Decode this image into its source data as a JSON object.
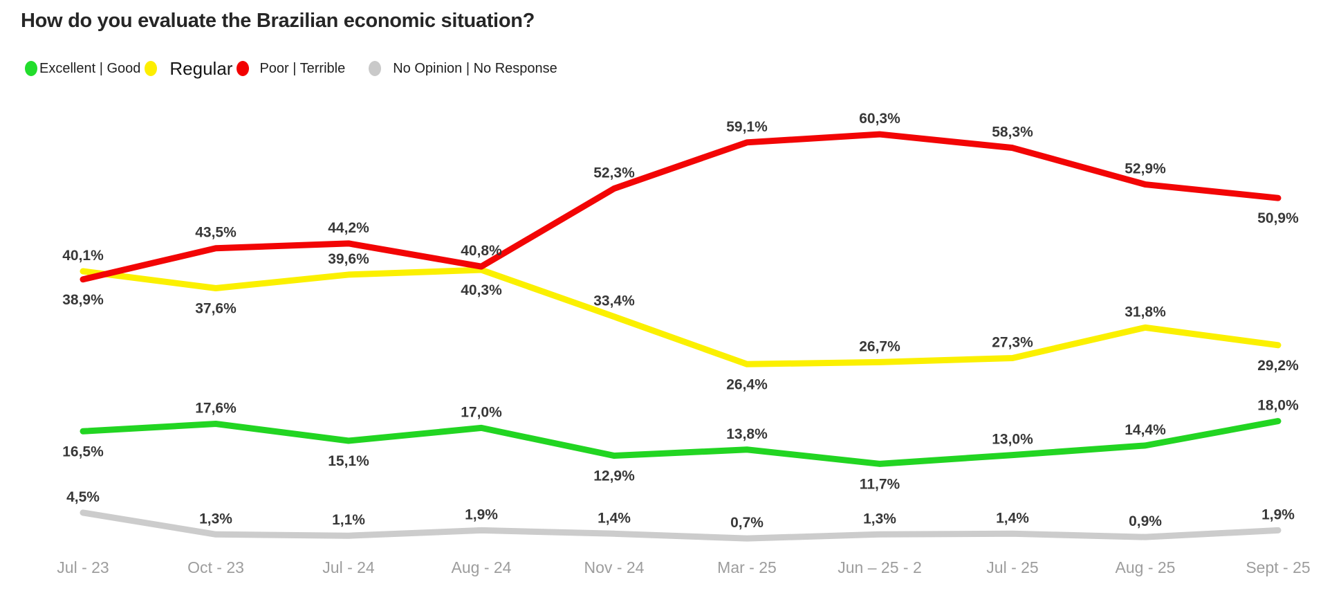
{
  "title": "How do you evaluate the Brazilian economic situation?",
  "legend": [
    {
      "label": "Excellent | Good",
      "color": "#22dd2c",
      "emphasis": false
    },
    {
      "label": "Regular",
      "color": "#fdee00",
      "emphasis": true
    },
    {
      "label": "Poor | Terrible",
      "color": "#f20000",
      "emphasis": false
    },
    {
      "label": "No Opinion | No Response",
      "color": "#c9c9c9",
      "emphasis": false
    }
  ],
  "chart_data": {
    "type": "line",
    "title": "How do you evaluate the Brazilian economic situation?",
    "categories": [
      "Jul - 23",
      "Oct - 23",
      "Jul - 24",
      "Aug - 24",
      "Nov - 24",
      "Mar - 25",
      "Jun – 25 - 2",
      "Jul - 25",
      "Aug - 25",
      "Sept - 25"
    ],
    "series": [
      {
        "name": "No Opinion | No Response",
        "color": "#cccccc",
        "z": 1,
        "values": [
          4.5,
          1.3,
          1.1,
          1.9,
          1.4,
          0.7,
          1.3,
          1.4,
          0.9,
          1.9
        ],
        "label_positions": [
          "above",
          "above",
          "above",
          "above",
          "above",
          "above",
          "above",
          "above",
          "above",
          "above"
        ]
      },
      {
        "name": "Excellent | Good",
        "color": "#22d522",
        "z": 2,
        "values": [
          16.5,
          17.6,
          15.1,
          17.0,
          12.9,
          13.8,
          11.7,
          13.0,
          14.4,
          18.0
        ],
        "label_positions": [
          "below",
          "above",
          "below",
          "above",
          "below",
          "above",
          "below",
          "above",
          "above",
          "above"
        ]
      },
      {
        "name": "Regular",
        "color": "#fbf000",
        "z": 3,
        "values": [
          40.1,
          37.6,
          39.6,
          40.3,
          33.4,
          26.4,
          26.7,
          27.3,
          31.8,
          29.2
        ],
        "label_positions": [
          "above",
          "below",
          "above",
          "below",
          "above",
          "below",
          "above",
          "above",
          "above",
          "below"
        ]
      },
      {
        "name": "Poor | Terrible",
        "color": "#f20505",
        "z": 4,
        "values": [
          38.9,
          43.5,
          44.2,
          40.8,
          52.3,
          59.1,
          60.3,
          58.3,
          52.9,
          50.9
        ],
        "label_positions": [
          "below",
          "above",
          "above",
          "above",
          "above",
          "above",
          "above",
          "above",
          "above",
          "below"
        ]
      }
    ],
    "value_suffix": "%",
    "decimal_separator": ",",
    "ylabel": "",
    "xlabel": "",
    "ylim": [
      0,
      65
    ],
    "grid": false,
    "legend_position": "top"
  }
}
